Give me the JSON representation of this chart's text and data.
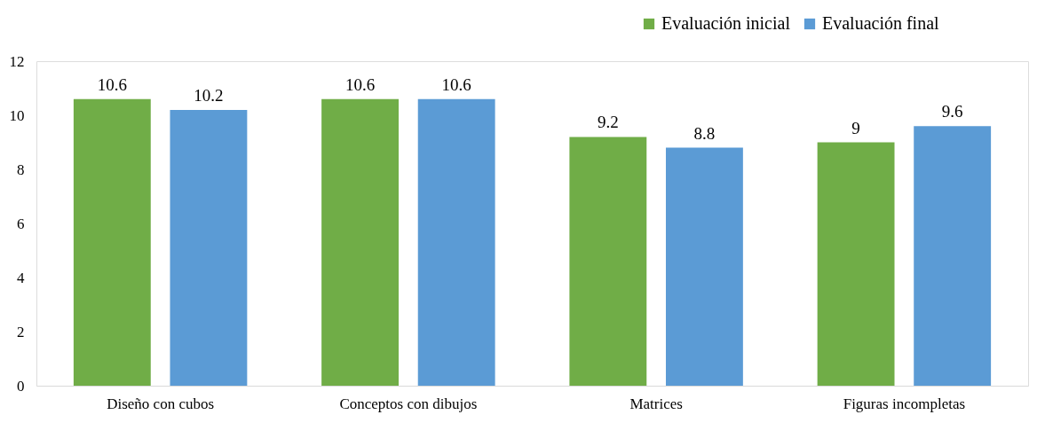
{
  "chart_data": {
    "type": "bar",
    "categories": [
      "Diseño con cubos",
      "Conceptos con dibujos",
      "Matrices",
      "Figuras incompletas"
    ],
    "series": [
      {
        "name": "Evaluación inicial",
        "color": "#70ad47",
        "values": [
          10.6,
          10.6,
          9.2,
          9
        ]
      },
      {
        "name": "Evaluación final",
        "color": "#5b9bd5",
        "values": [
          10.2,
          10.6,
          8.8,
          9.6
        ]
      }
    ],
    "ylim": [
      0,
      12
    ],
    "yticks": [
      0,
      2,
      4,
      6,
      8,
      10,
      12
    ],
    "grid": false,
    "legend": "top right",
    "data_labels": true
  }
}
